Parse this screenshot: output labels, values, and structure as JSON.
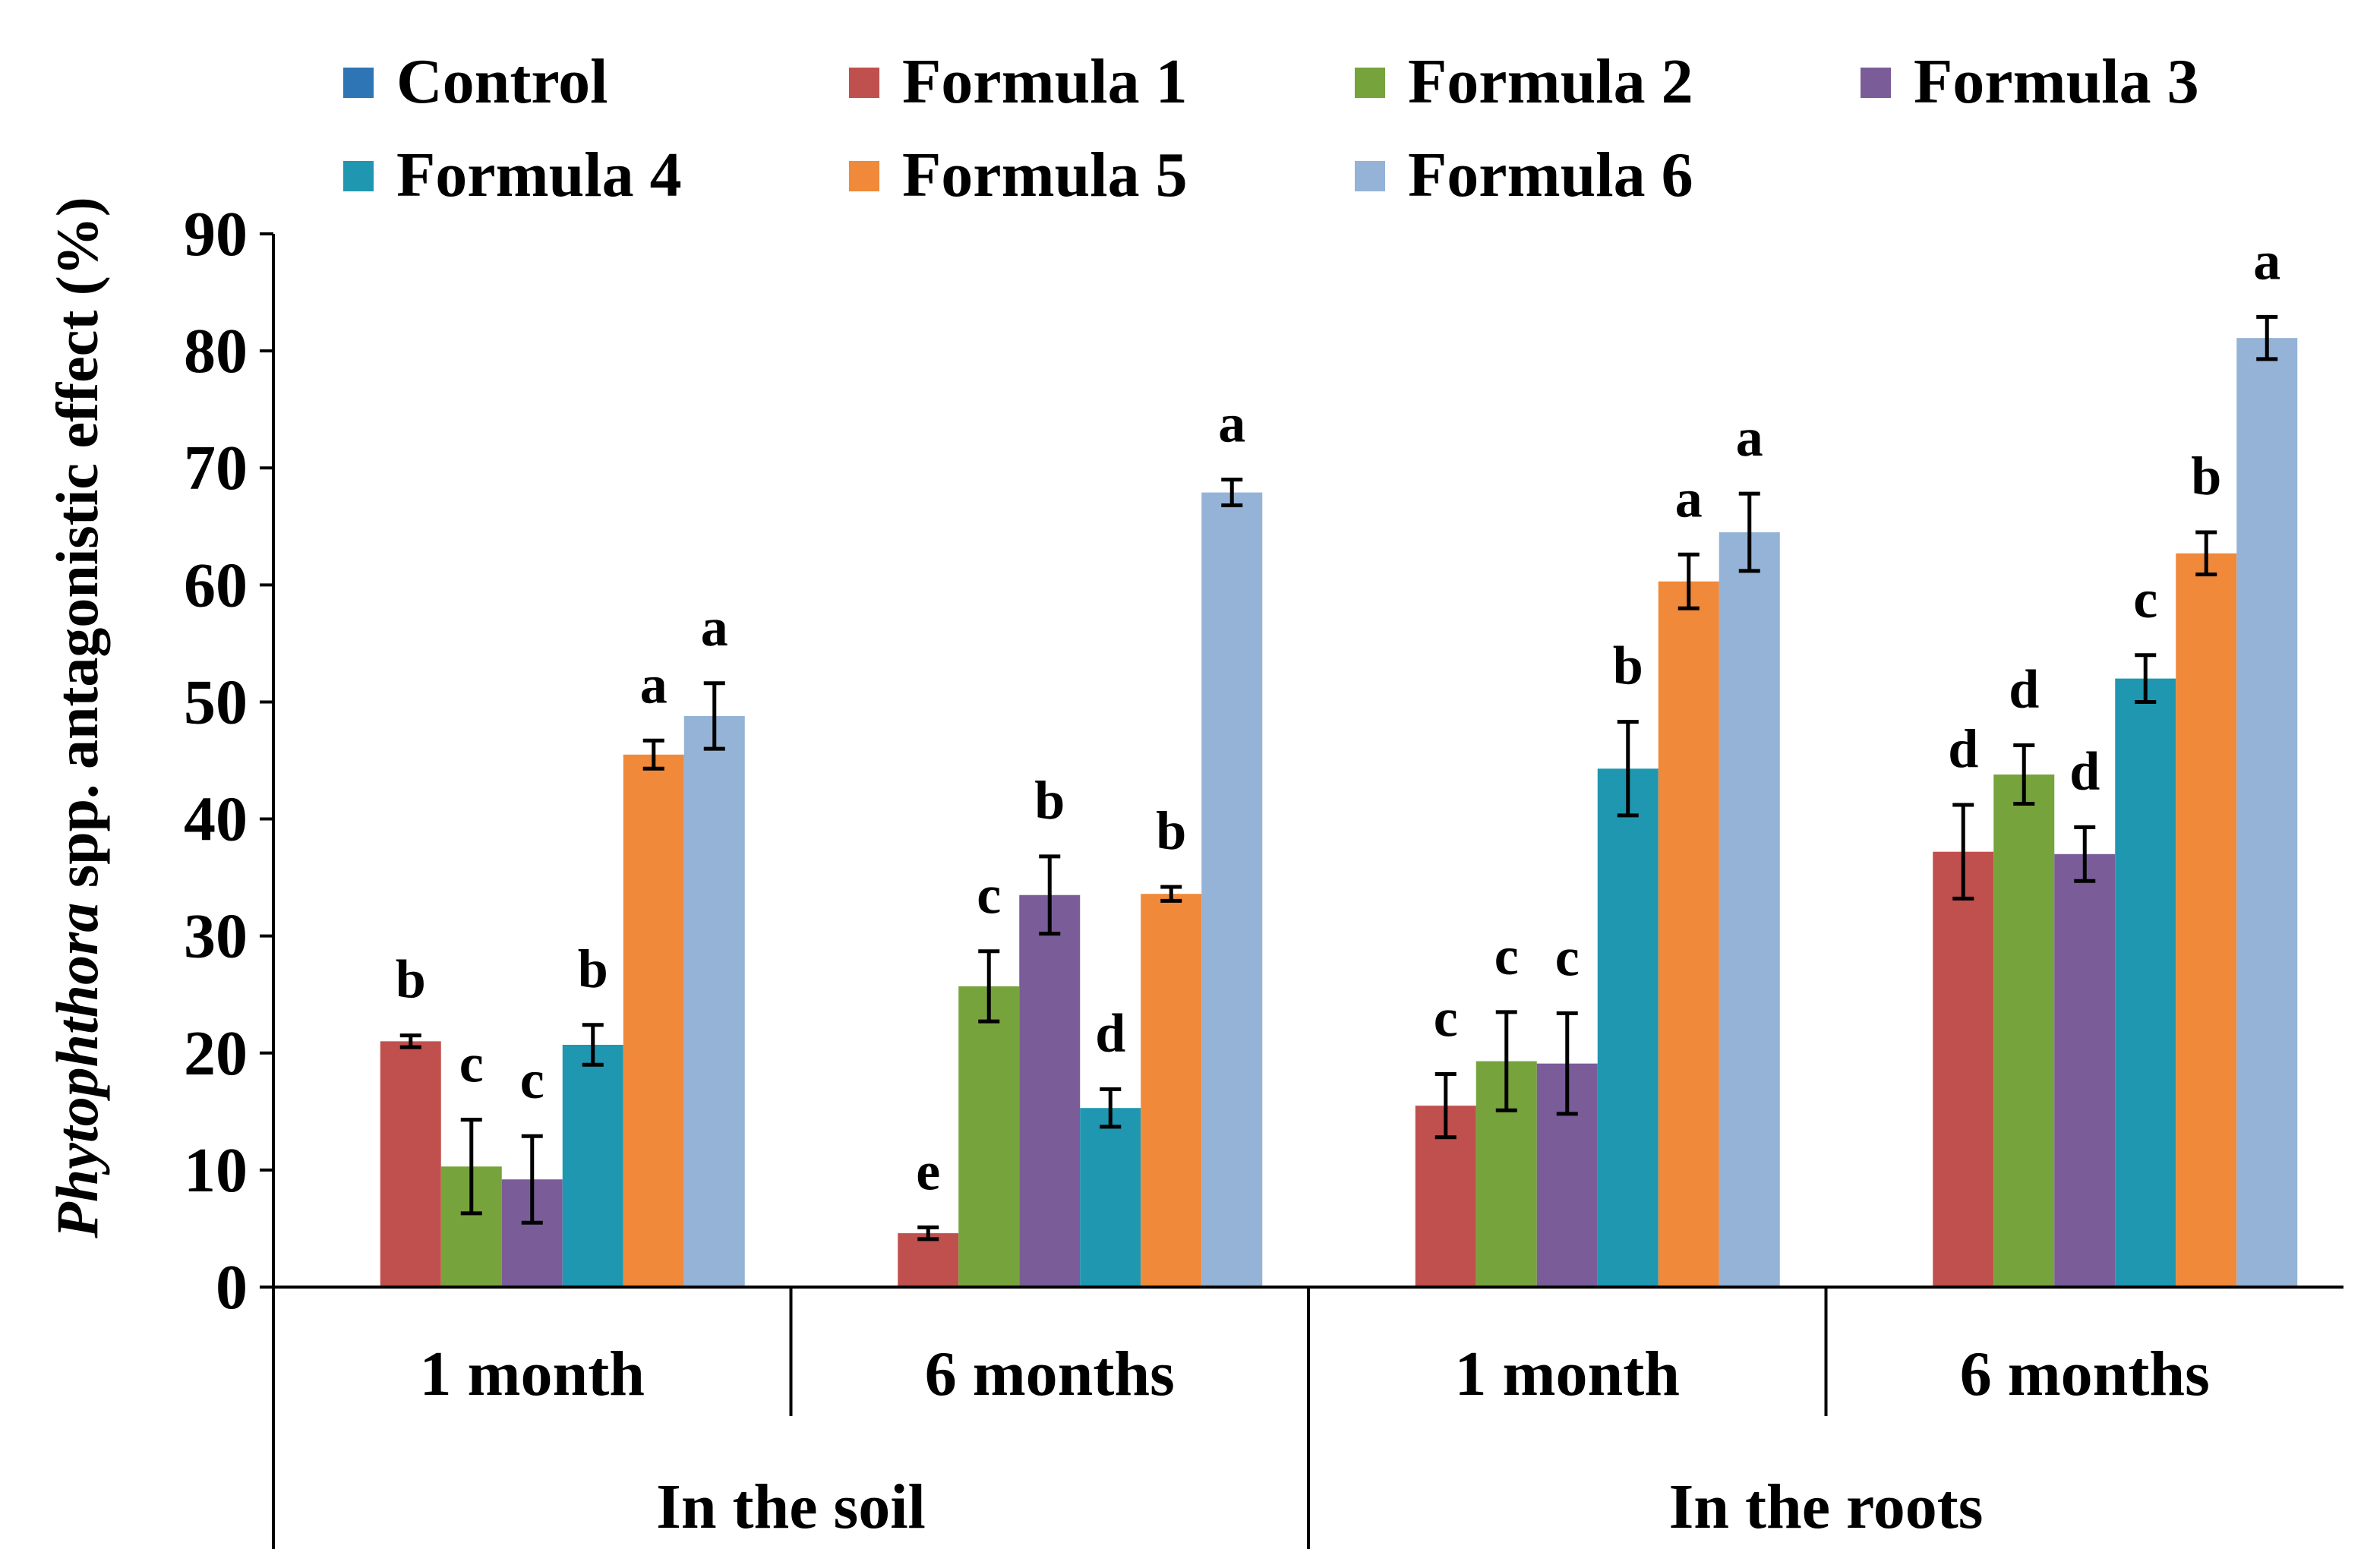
{
  "chart_data": {
    "type": "bar",
    "ylabel_italic": "Phytophthora",
    "ylabel_rest": " spp. antagonistic effect (%)",
    "ylim": [
      0,
      90
    ],
    "yticks": [
      "0",
      "10",
      "20",
      "30",
      "40",
      "50",
      "60",
      "70",
      "80",
      "90"
    ],
    "groups": [
      {
        "label": "In the soil",
        "categories": [
          "1 month",
          "6 months"
        ]
      },
      {
        "label": "In the roots",
        "categories": [
          "1 month",
          "6 months"
        ]
      }
    ],
    "categories": [
      "1 month",
      "6 months",
      "1 month",
      "6 months"
    ],
    "series": [
      {
        "name": "Control",
        "color": "#2e75b6",
        "values": [
          0,
          0,
          0,
          0
        ],
        "errors": [
          0,
          0,
          0,
          0
        ],
        "letters": [
          "",
          "",
          "",
          ""
        ]
      },
      {
        "name": "Formula 1",
        "color": "#c0504d",
        "values": [
          21.0,
          4.6,
          15.5,
          37.2
        ],
        "errors": [
          0.5,
          0.5,
          2.7,
          4.0
        ],
        "letters": [
          "b",
          "e",
          "c",
          "d"
        ]
      },
      {
        "name": "Formula 2",
        "color": "#77a33c",
        "values": [
          10.3,
          25.7,
          19.3,
          43.8
        ],
        "errors": [
          4.0,
          3.0,
          4.2,
          2.5
        ],
        "letters": [
          "c",
          "c",
          "c",
          "d"
        ]
      },
      {
        "name": "Formula 3",
        "color": "#7a5c99",
        "values": [
          9.2,
          33.5,
          19.1,
          37.0
        ],
        "errors": [
          3.7,
          3.3,
          4.3,
          2.3
        ],
        "letters": [
          "c",
          "b",
          "c",
          "d"
        ]
      },
      {
        "name": "Formula 4",
        "color": "#1f97b0",
        "values": [
          20.7,
          15.3,
          44.3,
          52.0
        ],
        "errors": [
          1.7,
          1.6,
          4.0,
          2.0
        ],
        "letters": [
          "b",
          "d",
          "b",
          "c"
        ]
      },
      {
        "name": "Formula 5",
        "color": "#f0893a",
        "values": [
          45.5,
          33.6,
          60.3,
          62.7
        ],
        "errors": [
          1.2,
          0.6,
          2.3,
          1.8
        ],
        "letters": [
          "a",
          "b",
          "a",
          "b"
        ]
      },
      {
        "name": "Formula 6",
        "color": "#94b3d6",
        "values": [
          48.8,
          67.9,
          64.5,
          81.1
        ],
        "errors": [
          2.8,
          1.1,
          3.3,
          1.8
        ],
        "letters": [
          "a",
          "a",
          "a",
          "a"
        ]
      }
    ]
  }
}
